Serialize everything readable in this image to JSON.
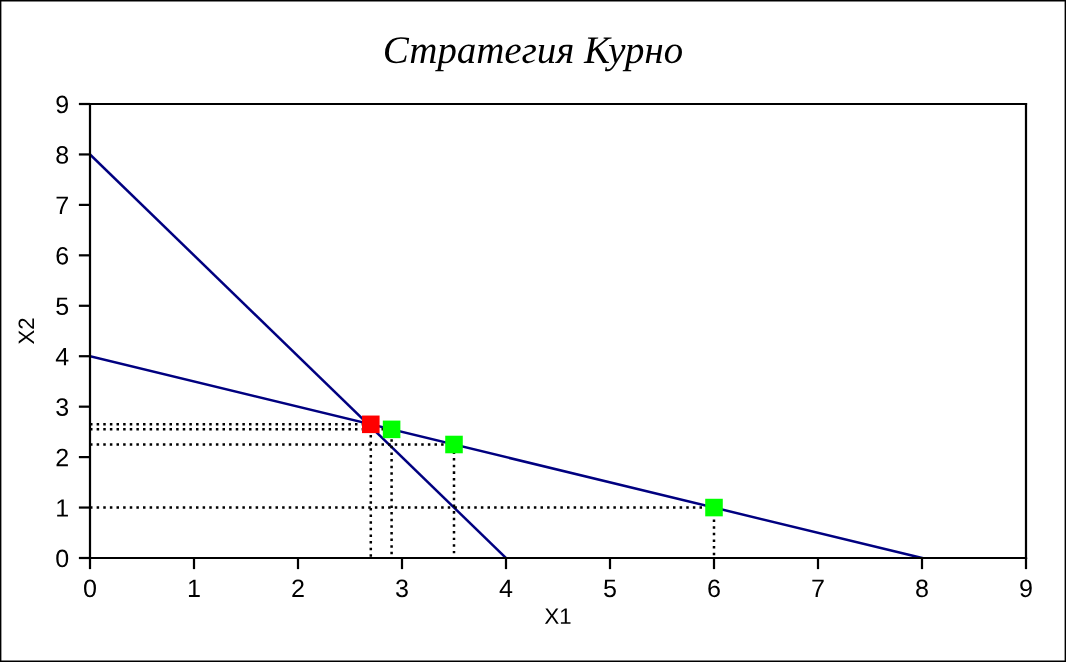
{
  "chart_data": {
    "type": "line",
    "title": "Стратегия Курно",
    "xlabel": "X1",
    "ylabel": "X2",
    "xlim": [
      0,
      9
    ],
    "ylim": [
      0,
      9
    ],
    "xticks": [
      0,
      1,
      2,
      3,
      4,
      5,
      6,
      7,
      8,
      9
    ],
    "yticks": [
      0,
      1,
      2,
      3,
      4,
      5,
      6,
      7,
      8,
      9
    ],
    "grid": false,
    "legend": false,
    "series": [
      {
        "x": [
          0,
          4
        ],
        "values": [
          8,
          0
        ],
        "color": "#000080",
        "line_style": "solid",
        "marker": "none"
      },
      {
        "x": [
          0,
          8
        ],
        "values": [
          4,
          0
        ],
        "color": "#000080",
        "line_style": "solid",
        "marker": "none"
      },
      {
        "x": [
          0,
          6,
          6
        ],
        "values": [
          1,
          1,
          0
        ],
        "color": "#000000",
        "line_style": "dotted",
        "marker": "none"
      },
      {
        "x": [
          0,
          3.5,
          3.5
        ],
        "values": [
          2.25,
          2.25,
          0
        ],
        "color": "#000000",
        "line_style": "dotted",
        "marker": "none"
      },
      {
        "x": [
          0,
          2.9,
          2.9
        ],
        "values": [
          2.55,
          2.55,
          0
        ],
        "color": "#000000",
        "line_style": "dotted",
        "marker": "none"
      },
      {
        "x": [
          0,
          2.7,
          2.7
        ],
        "values": [
          2.65,
          2.65,
          0
        ],
        "color": "#000000",
        "line_style": "dotted",
        "marker": "none"
      },
      {
        "type": "scatter",
        "x": [
          6,
          3.5,
          2.9
        ],
        "values": [
          1,
          2.25,
          2.55
        ],
        "color": "#00ff00",
        "marker": "square"
      },
      {
        "type": "scatter",
        "x": [
          2.7
        ],
        "values": [
          2.65
        ],
        "color": "#ff0000",
        "marker": "square"
      }
    ]
  }
}
